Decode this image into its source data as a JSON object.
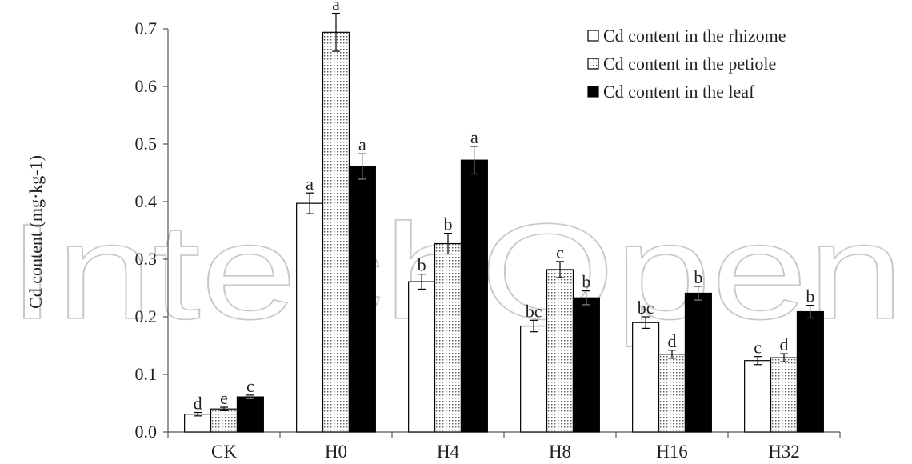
{
  "watermark": "IntechOpen",
  "chart_data": {
    "type": "bar",
    "title": "",
    "xlabel": "",
    "ylabel": "Cd content (mg·kg-1)",
    "ylim": [
      0,
      0.7
    ],
    "yticks": [
      0.0,
      0.1,
      0.2,
      0.3,
      0.4,
      0.5,
      0.6,
      0.7
    ],
    "ytick_labels": [
      "0.0",
      "0.1",
      "0.2",
      "0.3",
      "0.4",
      "0.5",
      "0.6",
      "0.7"
    ],
    "grid": false,
    "legend_position": "top-right",
    "categories": [
      "CK",
      "H0",
      "H4",
      "H8",
      "H16",
      "H32"
    ],
    "series": [
      {
        "name": "Cd content in the rhizome",
        "fill": "#ffffff",
        "pattern": "none",
        "values": [
          0.031,
          0.397,
          0.261,
          0.184,
          0.19,
          0.124
        ],
        "errors": [
          0.003,
          0.018,
          0.013,
          0.01,
          0.01,
          0.007
        ],
        "labels": [
          "d",
          "a",
          "b",
          "bc",
          "bc",
          "c"
        ]
      },
      {
        "name": "Cd content in the petiole",
        "fill": "#ffffff",
        "pattern": "dotted",
        "values": [
          0.04,
          0.694,
          0.327,
          0.282,
          0.135,
          0.129
        ],
        "errors": [
          0.003,
          0.033,
          0.018,
          0.014,
          0.007,
          0.007
        ],
        "labels": [
          "e",
          "a",
          "b",
          "c",
          "d",
          "d"
        ]
      },
      {
        "name": "Cd content in the leaf",
        "fill": "#000000",
        "pattern": "none",
        "values": [
          0.061,
          0.461,
          0.472,
          0.233,
          0.241,
          0.209
        ],
        "errors": [
          0.003,
          0.022,
          0.024,
          0.012,
          0.012,
          0.011
        ],
        "labels": [
          "c",
          "a",
          "a",
          "b",
          "b",
          "b"
        ]
      }
    ]
  }
}
